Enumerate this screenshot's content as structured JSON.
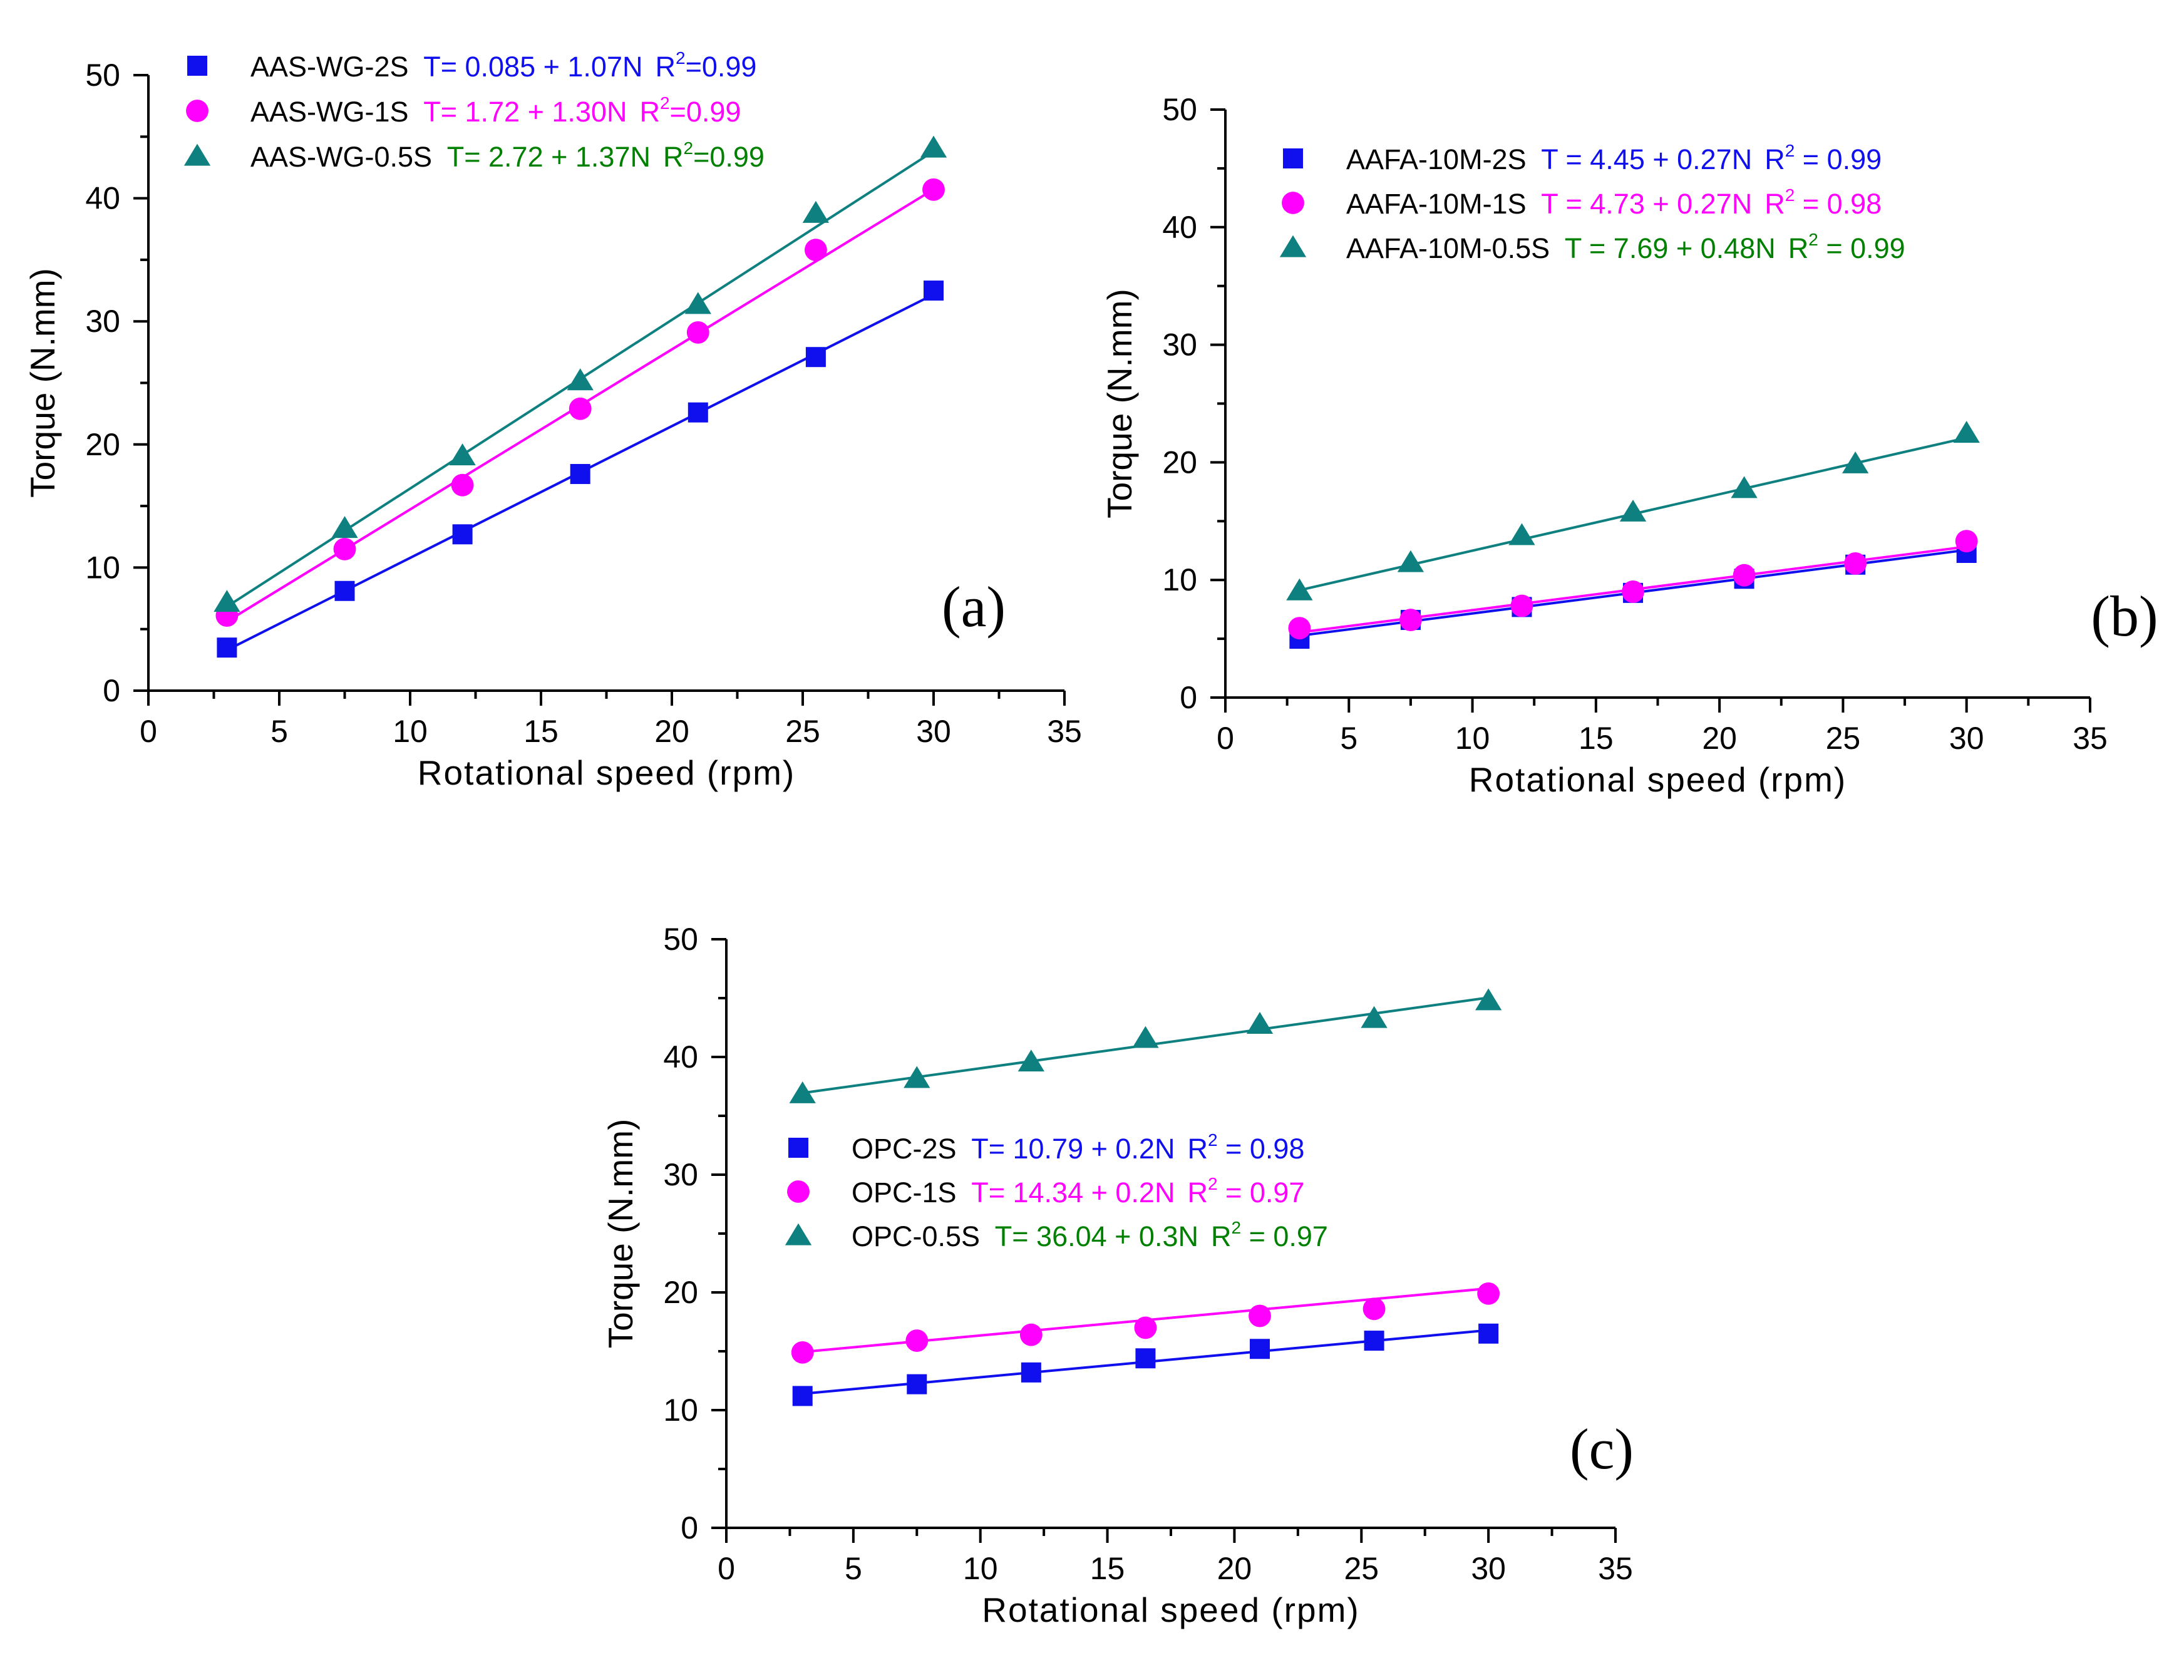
{
  "colors": {
    "axis": "#000000",
    "series_2s": "#1010ee",
    "series_1s": "#ff00ff",
    "series_05s": "#0f8080",
    "eq_05s": "#008000"
  },
  "chart_data": [
    {
      "type": "scatter",
      "panel_label": "(a)",
      "xlabel": "Rotational speed (rpm)",
      "ylabel": "Torque (N.mm)",
      "xlim": [
        0,
        35
      ],
      "ylim": [
        0,
        50
      ],
      "xticks": [
        "0",
        "5",
        "10",
        "15",
        "20",
        "25",
        "30",
        "35"
      ],
      "yticks": [
        "0",
        "10",
        "20",
        "30",
        "40",
        "50"
      ],
      "legend_position": "top-left",
      "series": [
        {
          "name": "AAS-WG-2S",
          "marker": "square-icon",
          "color": "#1010ee",
          "eq_color": "#1010ee",
          "equation": "T= 0.085 + 1.07N",
          "r2_label": "R",
          "r2_sup": "2",
          "r2_value": "=0.99",
          "x": [
            3,
            7.5,
            12,
            16.5,
            21,
            25.5,
            30
          ],
          "y": [
            3.5,
            8.1,
            12.7,
            17.6,
            22.6,
            27.1,
            32.5
          ],
          "fit": [
            0.085,
            1.07
          ]
        },
        {
          "name": "AAS-WG-1S",
          "marker": "circle-icon",
          "color": "#ff00ff",
          "eq_color": "#ff00ff",
          "equation": "T= 1.72 + 1.30N",
          "r2_label": "R",
          "r2_sup": "2",
          "r2_value": "=0.99",
          "x": [
            3,
            7.5,
            12,
            16.5,
            21,
            25.5,
            30
          ],
          "y": [
            6.1,
            11.5,
            16.7,
            22.9,
            29.1,
            35.8,
            40.7
          ],
          "fit": [
            1.72,
            1.3
          ]
        },
        {
          "name": "AAS-WG-0.5S",
          "marker": "triangle-icon",
          "color": "#0f8080",
          "eq_color": "#008000",
          "equation": "T= 2.72 + 1.37N",
          "r2_label": "R",
          "r2_sup": "2",
          "r2_value": "=0.99",
          "x": [
            3,
            7.5,
            12,
            16.5,
            21,
            25.5,
            30
          ],
          "y": [
            7.2,
            13.2,
            19.1,
            25.2,
            31.4,
            38.8,
            44.1
          ],
          "fit": [
            2.72,
            1.37
          ]
        }
      ]
    },
    {
      "type": "scatter",
      "panel_label": "(b)",
      "xlabel": "Rotational speed (rpm)",
      "ylabel": "Torque (N.mm)",
      "xlim": [
        0,
        35
      ],
      "ylim": [
        0,
        50
      ],
      "xticks": [
        "0",
        "5",
        "10",
        "15",
        "20",
        "25",
        "30",
        "35"
      ],
      "yticks": [
        "0",
        "10",
        "20",
        "30",
        "40",
        "50"
      ],
      "legend_position": "top-left",
      "series": [
        {
          "name": "AAFA-10M-2S",
          "marker": "square-icon",
          "color": "#1010ee",
          "eq_color": "#1010ee",
          "equation": "T = 4.45 + 0.27N",
          "r2_label": "R",
          "r2_sup": "2",
          "r2_value": " = 0.99",
          "x": [
            3,
            7.5,
            12,
            16.5,
            21,
            25.5,
            30
          ],
          "y": [
            5.0,
            6.6,
            7.7,
            8.9,
            10.1,
            11.3,
            12.3
          ],
          "fit": [
            4.45,
            0.27
          ]
        },
        {
          "name": "AAFA-10M-1S",
          "marker": "circle-icon",
          "color": "#ff00ff",
          "eq_color": "#ff00ff",
          "equation": "T = 4.73 + 0.27N",
          "r2_label": "R",
          "r2_sup": "2",
          "r2_value": " = 0.98",
          "x": [
            3,
            7.5,
            12,
            16.5,
            21,
            25.5,
            30
          ],
          "y": [
            5.9,
            6.6,
            7.8,
            9.0,
            10.4,
            11.4,
            13.3
          ],
          "fit": [
            4.73,
            0.27
          ]
        },
        {
          "name": "AAFA-10M-0.5S",
          "marker": "triangle-icon",
          "color": "#0f8080",
          "eq_color": "#008000",
          "equation": "T = 7.69 + 0.48N",
          "r2_label": "R",
          "r2_sup": "2",
          "r2_value": " = 0.99",
          "x": [
            3,
            7.5,
            12,
            16.5,
            21,
            25.5,
            30
          ],
          "y": [
            9.1,
            11.5,
            13.8,
            15.8,
            17.8,
            19.9,
            22.5
          ],
          "fit": [
            7.69,
            0.48
          ]
        }
      ]
    },
    {
      "type": "scatter",
      "panel_label": "(c)",
      "xlabel": "Rotational speed (rpm)",
      "ylabel": "Torque (N.mm)",
      "xlim": [
        0,
        35
      ],
      "ylim": [
        0,
        50
      ],
      "xticks": [
        "0",
        "5",
        "10",
        "15",
        "20",
        "25",
        "30",
        "35"
      ],
      "yticks": [
        "0",
        "10",
        "20",
        "30",
        "40",
        "50"
      ],
      "legend_position": "center-left",
      "series": [
        {
          "name": "OPC-2S",
          "marker": "square-icon",
          "color": "#1010ee",
          "eq_color": "#1010ee",
          "equation": "T= 10.79 + 0.2N",
          "r2_label": "R",
          "r2_sup": "2",
          "r2_value": " = 0.98",
          "x": [
            3,
            7.5,
            12,
            16.5,
            21,
            25.5,
            30
          ],
          "y": [
            11.2,
            12.2,
            13.2,
            14.4,
            15.2,
            15.9,
            16.5
          ],
          "fit": [
            10.79,
            0.2
          ]
        },
        {
          "name": "OPC-1S",
          "marker": "circle-icon",
          "color": "#ff00ff",
          "eq_color": "#ff00ff",
          "equation": "T= 14.34 + 0.2N",
          "r2_label": "R",
          "r2_sup": "2",
          "r2_value": " = 0.97",
          "x": [
            3,
            7.5,
            12,
            16.5,
            21,
            25.5,
            30
          ],
          "y": [
            14.9,
            15.9,
            16.4,
            17.0,
            18.0,
            18.6,
            19.9
          ],
          "fit": [
            14.34,
            0.2
          ]
        },
        {
          "name": "OPC-0.5S",
          "marker": "triangle-icon",
          "color": "#0f8080",
          "eq_color": "#008000",
          "equation": "T= 36.04 + 0.3N",
          "r2_label": "R",
          "r2_sup": "2",
          "r2_value": " = 0.97",
          "x": [
            3,
            7.5,
            12,
            16.5,
            21,
            25.5,
            30
          ],
          "y": [
            36.9,
            38.2,
            39.6,
            41.6,
            42.8,
            43.3,
            44.8
          ],
          "fit": [
            36.04,
            0.3
          ]
        }
      ]
    }
  ]
}
